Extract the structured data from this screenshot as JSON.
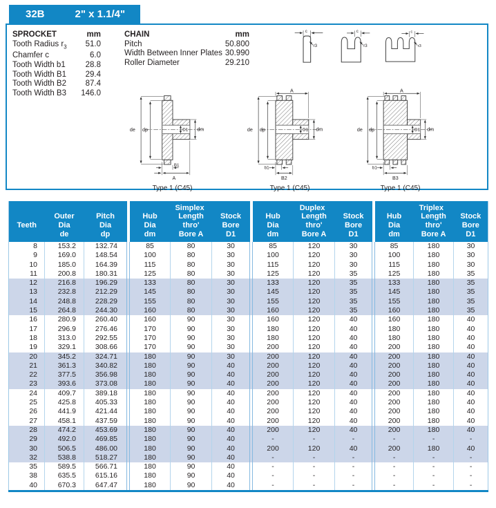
{
  "tab": {
    "model": "32B",
    "size": "2\" x 1.1/4\""
  },
  "specs": {
    "sprocket": {
      "title": "SPROCKET",
      "unit": "mm",
      "rows": [
        {
          "label": "Tooth Radius r",
          "sub": "3",
          "value": "51.0"
        },
        {
          "label": "Chamfer c",
          "value": "6.0"
        },
        {
          "label": "Tooth Width b1",
          "value": "28.8"
        },
        {
          "label": "Tooth Width B1",
          "value": "29.4"
        },
        {
          "label": "Tooth Width B2",
          "value": "87.4"
        },
        {
          "label": "Tooth Width B3",
          "value": "146.0"
        }
      ]
    },
    "chain": {
      "title": "CHAIN",
      "unit": "mm",
      "rows": [
        {
          "label": "Pitch",
          "value": "50.800"
        },
        {
          "label": "Width Between Inner Plates",
          "value": "30.990"
        },
        {
          "label": "Roller Diameter",
          "value": "29.210"
        }
      ]
    }
  },
  "diagrams": {
    "profiles": [
      {
        "chamfer": "c",
        "radius": "r3"
      },
      {
        "chamfer": "c",
        "radius": "r3"
      },
      {
        "chamfer": "c",
        "radius": "r3"
      }
    ],
    "sections": [
      {
        "caption": "Type 1 (C45)",
        "outer": "de",
        "pitch": "dp",
        "bore": "D1",
        "hub": "dm",
        "width": "B1",
        "through": "A"
      },
      {
        "caption": "Type 1 (C45)",
        "outer": "de",
        "pitch": "dp",
        "bore": "D1",
        "hub": "dm",
        "tooth": "b1",
        "width": "B2",
        "through": "A"
      },
      {
        "caption": "Type 1 (C45)",
        "outer": "de",
        "pitch": "dp",
        "bore": "D1",
        "hub": "dm",
        "tooth": "b1",
        "width": "B3",
        "through": "A"
      }
    ]
  },
  "table": {
    "col1": "Teeth",
    "col2": [
      "Outer",
      "Dia",
      "de"
    ],
    "col3": [
      "Pitch",
      "Dia",
      "dp"
    ],
    "groups": [
      {
        "title": "Simplex",
        "cols": [
          [
            "Hub",
            "Dia",
            "dm"
          ],
          [
            "Length",
            "thro'",
            "Bore A"
          ],
          [
            "Stock",
            "Bore",
            "D1"
          ]
        ]
      },
      {
        "title": "Duplex",
        "cols": [
          [
            "Hub",
            "Dia",
            "dm"
          ],
          [
            "Length",
            "thro'",
            "Bore A"
          ],
          [
            "Stock",
            "Bore",
            "D1"
          ]
        ]
      },
      {
        "title": "Triplex",
        "cols": [
          [
            "Hub",
            "Dia",
            "dm"
          ],
          [
            "Length",
            "thro'",
            "Bore A"
          ],
          [
            "Stock",
            "Bore",
            "D1"
          ]
        ]
      }
    ],
    "rows": [
      [
        "8",
        "153.2",
        "132.74",
        "85",
        "80",
        "30",
        "85",
        "120",
        "30",
        "85",
        "180",
        "30"
      ],
      [
        "9",
        "169.0",
        "148.54",
        "100",
        "80",
        "30",
        "100",
        "120",
        "30",
        "100",
        "180",
        "30"
      ],
      [
        "10",
        "185.0",
        "164.39",
        "115",
        "80",
        "30",
        "115",
        "120",
        "30",
        "115",
        "180",
        "30"
      ],
      [
        "11",
        "200.8",
        "180.31",
        "125",
        "80",
        "30",
        "125",
        "120",
        "35",
        "125",
        "180",
        "35"
      ],
      [
        "12",
        "216.8",
        "196.29",
        "133",
        "80",
        "30",
        "133",
        "120",
        "35",
        "133",
        "180",
        "35"
      ],
      [
        "13",
        "232.8",
        "212.29",
        "145",
        "80",
        "30",
        "145",
        "120",
        "35",
        "145",
        "180",
        "35"
      ],
      [
        "14",
        "248.8",
        "228.29",
        "155",
        "80",
        "30",
        "155",
        "120",
        "35",
        "155",
        "180",
        "35"
      ],
      [
        "15",
        "264.8",
        "244.30",
        "160",
        "80",
        "30",
        "160",
        "120",
        "35",
        "160",
        "180",
        "35"
      ],
      [
        "16",
        "280.9",
        "260.40",
        "160",
        "90",
        "30",
        "160",
        "120",
        "40",
        "160",
        "180",
        "40"
      ],
      [
        "17",
        "296.9",
        "276.46",
        "170",
        "90",
        "30",
        "180",
        "120",
        "40",
        "180",
        "180",
        "40"
      ],
      [
        "18",
        "313.0",
        "292.55",
        "170",
        "90",
        "30",
        "180",
        "120",
        "40",
        "180",
        "180",
        "40"
      ],
      [
        "19",
        "329.1",
        "308.66",
        "170",
        "90",
        "30",
        "200",
        "120",
        "40",
        "200",
        "180",
        "40"
      ],
      [
        "20",
        "345.2",
        "324.71",
        "180",
        "90",
        "30",
        "200",
        "120",
        "40",
        "200",
        "180",
        "40"
      ],
      [
        "21",
        "361.3",
        "340.82",
        "180",
        "90",
        "40",
        "200",
        "120",
        "40",
        "200",
        "180",
        "40"
      ],
      [
        "22",
        "377.5",
        "356.98",
        "180",
        "90",
        "40",
        "200",
        "120",
        "40",
        "200",
        "180",
        "40"
      ],
      [
        "23",
        "393.6",
        "373.08",
        "180",
        "90",
        "40",
        "200",
        "120",
        "40",
        "200",
        "180",
        "40"
      ],
      [
        "24",
        "409.7",
        "389.18",
        "180",
        "90",
        "40",
        "200",
        "120",
        "40",
        "200",
        "180",
        "40"
      ],
      [
        "25",
        "425.8",
        "405.33",
        "180",
        "90",
        "40",
        "200",
        "120",
        "40",
        "200",
        "180",
        "40"
      ],
      [
        "26",
        "441.9",
        "421.44",
        "180",
        "90",
        "40",
        "200",
        "120",
        "40",
        "200",
        "180",
        "40"
      ],
      [
        "27",
        "458.1",
        "437.59",
        "180",
        "90",
        "40",
        "200",
        "120",
        "40",
        "200",
        "180",
        "40"
      ],
      [
        "28",
        "474.2",
        "453.69",
        "180",
        "90",
        "40",
        "200",
        "120",
        "40",
        "200",
        "180",
        "40"
      ],
      [
        "29",
        "492.0",
        "469.85",
        "180",
        "90",
        "40",
        "-",
        "-",
        "-",
        "-",
        "-",
        "-"
      ],
      [
        "30",
        "506.5",
        "486.00",
        "180",
        "90",
        "40",
        "200",
        "120",
        "40",
        "200",
        "180",
        "40"
      ],
      [
        "32",
        "538.8",
        "518.27",
        "180",
        "90",
        "40",
        "-",
        "-",
        "-",
        "-",
        "-",
        "-"
      ],
      [
        "35",
        "589.5",
        "566.71",
        "180",
        "90",
        "40",
        "-",
        "-",
        "-",
        "-",
        "-",
        "-"
      ],
      [
        "38",
        "635.5",
        "615.16",
        "180",
        "90",
        "40",
        "-",
        "-",
        "-",
        "-",
        "-",
        "-"
      ],
      [
        "40",
        "670.3",
        "647.47",
        "180",
        "90",
        "40",
        "-",
        "-",
        "-",
        "-",
        "-",
        "-"
      ]
    ]
  }
}
